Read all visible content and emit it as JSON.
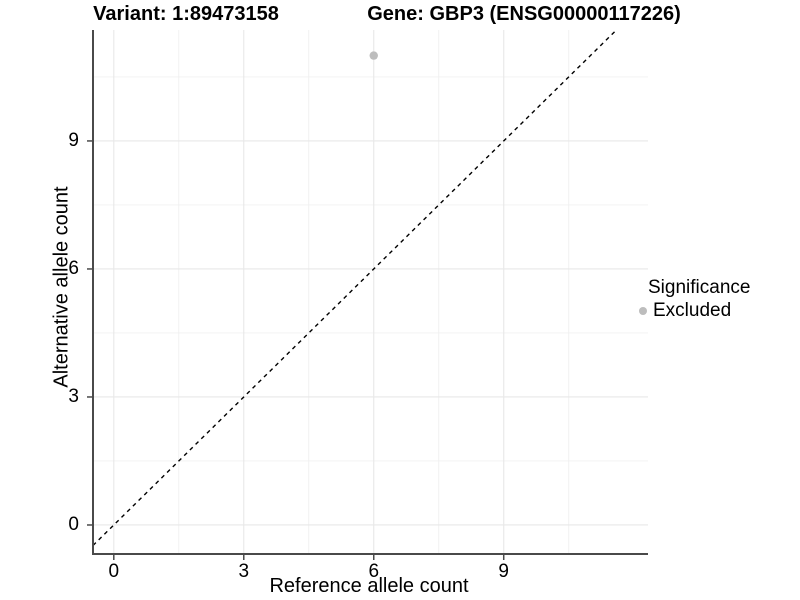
{
  "header": {
    "variant_title": "Variant: 1:89473158",
    "gene_title": "Gene: GBP3 (ENSG00000117226)"
  },
  "chart_data": {
    "type": "scatter",
    "xlabel": "Reference allele count",
    "ylabel": "Alternative allele count",
    "x_ticks": [
      0,
      3,
      6,
      9
    ],
    "y_ticks": [
      0,
      3,
      6,
      9
    ],
    "x_minor": [
      1.5,
      4.5,
      7.5,
      10.5
    ],
    "y_minor": [
      1.5,
      4.5,
      7.5,
      10.5
    ],
    "xlim": [
      -0.48,
      12.33
    ],
    "ylim": [
      -0.68,
      11.6
    ],
    "grid": "major+minor",
    "points": [
      {
        "x": 6,
        "y": 11,
        "significance": "Excluded",
        "color": "#bdbdbd",
        "size": 4.2
      }
    ],
    "reference_line": {
      "type": "identity",
      "slope": 1,
      "intercept": 0,
      "style": "dashed",
      "color": "#000000"
    },
    "legend": {
      "title": "Significance",
      "position": "right",
      "items": [
        {
          "label": "Excluded",
          "color": "#bdbdbd"
        }
      ]
    },
    "colors": {
      "background": "#ffffff",
      "grid_major": "#e8e8e8",
      "grid_minor": "#f0f0f0",
      "axis": "#4a4a4a",
      "text": "#000000"
    }
  }
}
